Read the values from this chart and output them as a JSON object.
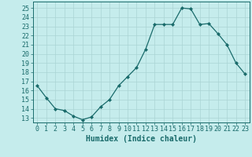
{
  "x": [
    0,
    1,
    2,
    3,
    4,
    5,
    6,
    7,
    8,
    9,
    10,
    11,
    12,
    13,
    14,
    15,
    16,
    17,
    18,
    19,
    20,
    21,
    22,
    23
  ],
  "y": [
    16.5,
    15.2,
    14.0,
    13.8,
    13.2,
    12.8,
    13.1,
    14.2,
    15.0,
    16.5,
    17.5,
    18.5,
    20.5,
    23.2,
    23.2,
    23.2,
    25.0,
    24.9,
    23.2,
    23.3,
    22.2,
    21.0,
    19.0,
    17.8
  ],
  "line_color": "#1a6b6b",
  "marker": "D",
  "marker_size": 2,
  "bg_color": "#c5ecec",
  "grid_color": "#aad4d4",
  "xlabel": "Humidex (Indice chaleur)",
  "ylim": [
    12.5,
    25.7
  ],
  "xlim": [
    -0.5,
    23.5
  ],
  "yticks": [
    13,
    14,
    15,
    16,
    17,
    18,
    19,
    20,
    21,
    22,
    23,
    24,
    25
  ],
  "xticks": [
    0,
    1,
    2,
    3,
    4,
    5,
    6,
    7,
    8,
    9,
    10,
    11,
    12,
    13,
    14,
    15,
    16,
    17,
    18,
    19,
    20,
    21,
    22,
    23
  ],
  "tick_color": "#1a6b6b",
  "label_color": "#1a6b6b",
  "xlabel_fontsize": 7,
  "tick_fontsize": 6
}
